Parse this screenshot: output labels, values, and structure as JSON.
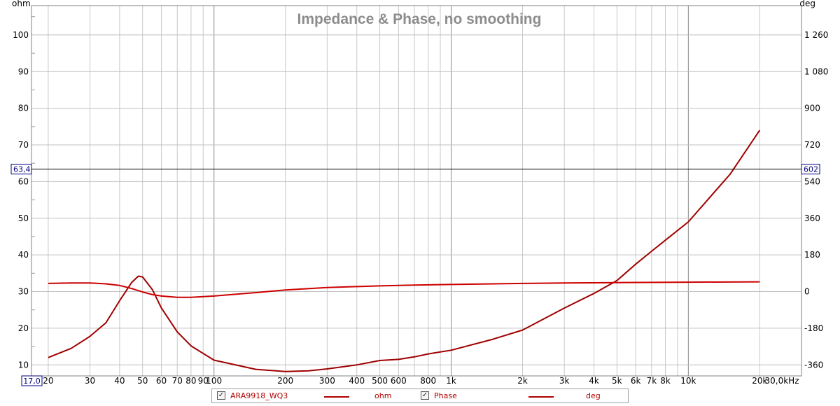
{
  "chart_data": {
    "type": "line",
    "title": "Impedance & Phase, no smoothing",
    "x_scale": "log",
    "xlim": [
      17.0,
      30000
    ],
    "ylabel_left": "ohm",
    "ylabel_right": "deg",
    "ylim_left": [
      7,
      108
    ],
    "ylim_right": [
      -414,
      1404
    ],
    "grid": true,
    "x_ticks": [
      {
        "v": 17,
        "label": "17,0"
      },
      {
        "v": 20,
        "label": "20"
      },
      {
        "v": 30,
        "label": "30"
      },
      {
        "v": 40,
        "label": "40"
      },
      {
        "v": 50,
        "label": "50"
      },
      {
        "v": 60,
        "label": "60"
      },
      {
        "v": 70,
        "label": "70"
      },
      {
        "v": 80,
        "label": "80"
      },
      {
        "v": 90,
        "label": "90"
      },
      {
        "v": 100,
        "label": "100"
      },
      {
        "v": 200,
        "label": "200"
      },
      {
        "v": 300,
        "label": "300"
      },
      {
        "v": 400,
        "label": "400"
      },
      {
        "v": 500,
        "label": "500"
      },
      {
        "v": 600,
        "label": "600"
      },
      {
        "v": 800,
        "label": "800"
      },
      {
        "v": 1000,
        "label": "1k"
      },
      {
        "v": 2000,
        "label": "2k"
      },
      {
        "v": 3000,
        "label": "3k"
      },
      {
        "v": 4000,
        "label": "4k"
      },
      {
        "v": 5000,
        "label": "5k"
      },
      {
        "v": 6000,
        "label": "6k"
      },
      {
        "v": 7000,
        "label": "7k"
      },
      {
        "v": 8000,
        "label": "8k"
      },
      {
        "v": 10000,
        "label": "10k"
      },
      {
        "v": 20000,
        "label": "20k"
      },
      {
        "v": 30000,
        "label": "30,0kHz"
      }
    ],
    "y_ticks_left": [
      "10",
      "20",
      "30",
      "40",
      "50",
      "60",
      "70",
      "80",
      "90",
      "100"
    ],
    "y_ticks_right": [
      {
        "v": -360,
        "label": "-360"
      },
      {
        "v": -180,
        "label": "-180"
      },
      {
        "v": 0,
        "label": "0"
      },
      {
        "v": 180,
        "label": "180"
      },
      {
        "v": 360,
        "label": "360"
      },
      {
        "v": 540,
        "label": "540"
      },
      {
        "v": 720,
        "label": "720"
      },
      {
        "v": 900,
        "label": "900"
      },
      {
        "v": 1080,
        "label": "1 080"
      },
      {
        "v": 1260,
        "label": "1 260"
      }
    ],
    "cursor": {
      "ohm": 63.4,
      "ohm_label": "63,4",
      "deg_label": "602"
    },
    "series": [
      {
        "name": "ohm",
        "axis": "left",
        "color": "#a00000",
        "x": [
          20,
          25,
          30,
          35,
          40,
          45,
          48,
          50,
          55,
          60,
          70,
          80,
          100,
          150,
          200,
          250,
          300,
          400,
          500,
          600,
          700,
          800,
          1000,
          1500,
          2000,
          3000,
          4000,
          5000,
          6000,
          7000,
          8000,
          10000,
          15000,
          20000
        ],
        "y": [
          12.0,
          14.5,
          17.8,
          21.5,
          27.5,
          32.5,
          34.2,
          34.0,
          30.5,
          25.5,
          19.0,
          15.2,
          11.3,
          8.8,
          8.2,
          8.4,
          8.9,
          10.0,
          11.2,
          11.5,
          12.2,
          13.0,
          14.0,
          17.0,
          19.5,
          25.5,
          29.5,
          33.0,
          37.5,
          41.0,
          44.0,
          49.0,
          62.0,
          74.0
        ]
      },
      {
        "name": "deg",
        "axis": "right",
        "color": "#cc0000",
        "x": [
          20,
          25,
          30,
          35,
          40,
          45,
          50,
          55,
          60,
          70,
          80,
          100,
          150,
          200,
          300,
          500,
          700,
          1000,
          2000,
          3000,
          5000,
          10000,
          20000
        ],
        "y": [
          40,
          42,
          42,
          38,
          30,
          15,
          -2,
          -15,
          -22,
          -28,
          -28,
          -22,
          -5,
          8,
          20,
          28,
          32,
          35,
          40,
          42,
          44,
          46,
          48
        ]
      }
    ]
  },
  "legend": {
    "file_label": "ARA9918_WQ3",
    "series1_label": "ohm",
    "phase_label": "Phase",
    "series2_label": "deg",
    "check_glyph": "✓"
  }
}
